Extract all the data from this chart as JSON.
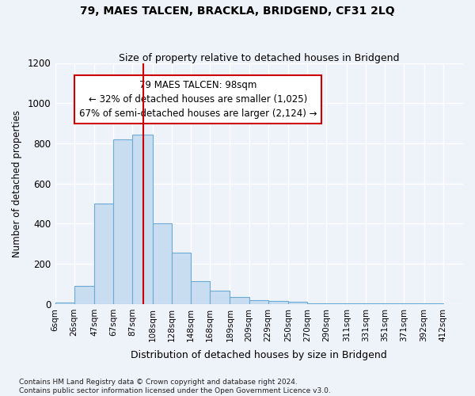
{
  "title": "79, MAES TALCEN, BRACKLA, BRIDGEND, CF31 2LQ",
  "subtitle": "Size of property relative to detached houses in Bridgend",
  "xlabel": "Distribution of detached houses by size in Bridgend",
  "ylabel": "Number of detached properties",
  "footer_line1": "Contains HM Land Registry data © Crown copyright and database right 2024.",
  "footer_line2": "Contains public sector information licensed under the Open Government Licence v3.0.",
  "bin_labels": [
    "6sqm",
    "26sqm",
    "47sqm",
    "67sqm",
    "87sqm",
    "108sqm",
    "128sqm",
    "148sqm",
    "168sqm",
    "189sqm",
    "209sqm",
    "229sqm",
    "250sqm",
    "270sqm",
    "290sqm",
    "311sqm",
    "331sqm",
    "351sqm",
    "371sqm",
    "392sqm",
    "412sqm"
  ],
  "bar_values": [
    8,
    90,
    500,
    820,
    845,
    400,
    255,
    115,
    68,
    35,
    20,
    15,
    10,
    5,
    5,
    5,
    5,
    5,
    5,
    5
  ],
  "bar_color": "#c9ddf0",
  "bar_edge_color": "#6aaad4",
  "annotation_label": "79 MAES TALCEN: 98sqm",
  "annotation_line1": "← 32% of detached houses are smaller (1,025)",
  "annotation_line2": "67% of semi-detached houses are larger (2,124) →",
  "vline_color": "#cc0000",
  "ylim": [
    0,
    1200
  ],
  "yticks": [
    0,
    200,
    400,
    600,
    800,
    1000,
    1200
  ],
  "background_color": "#eef2f9",
  "grid_color": "#ffffff",
  "annotation_box_color": "#ffffff",
  "annotation_box_edge_color": "#cc0000"
}
